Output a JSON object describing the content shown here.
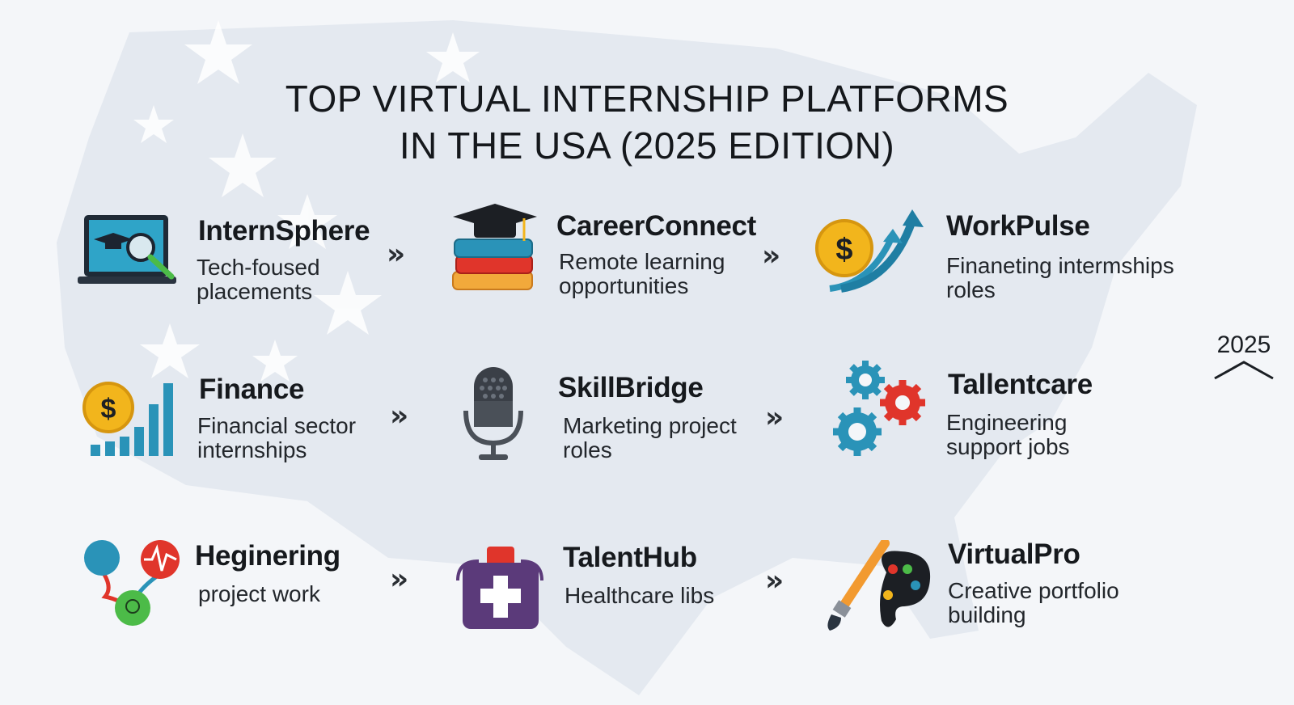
{
  "title": {
    "line1": "TOP VIRTUAL INTERNSHIP PLATFORMS",
    "line2": "IN THE USA (2025 EDITION)"
  },
  "year_badge": "2025",
  "platforms": [
    {
      "name": "InternSphere",
      "desc": "Tech-foused placements",
      "icon": "laptop-magnifier-icon"
    },
    {
      "name": "CareerConnect",
      "desc": "Remote learning opportunities",
      "icon": "books-graduation-cap-icon"
    },
    {
      "name": "WorkPulse",
      "desc": "Finaneting intermships roles",
      "icon": "coin-growth-arrows-icon"
    },
    {
      "name": "Finance",
      "desc": "Financial sector internships",
      "icon": "coin-bar-chart-icon"
    },
    {
      "name": "SkillBridge",
      "desc": "Marketing project roles",
      "icon": "microphone-icon"
    },
    {
      "name": "Tallentcare",
      "desc": "Engineering support jobs",
      "icon": "gears-icon"
    },
    {
      "name": "Heginering",
      "desc": "project work",
      "icon": "connected-nodes-icon"
    },
    {
      "name": "TalentHub",
      "desc": "Healthcare libs",
      "icon": "medical-kit-icon"
    },
    {
      "name": "VirtualPro",
      "desc": "Creative portfolio building",
      "icon": "paintbrush-palette-icon"
    }
  ],
  "chevron": "»",
  "colors": {
    "background": "#f4f6f9",
    "map": "#e3e8ef",
    "teal": "#2a93b8",
    "gold": "#f2b51c",
    "red": "#e0352b",
    "purple": "#5b3a7a",
    "orange": "#f29a30",
    "green": "#4cbb48"
  }
}
